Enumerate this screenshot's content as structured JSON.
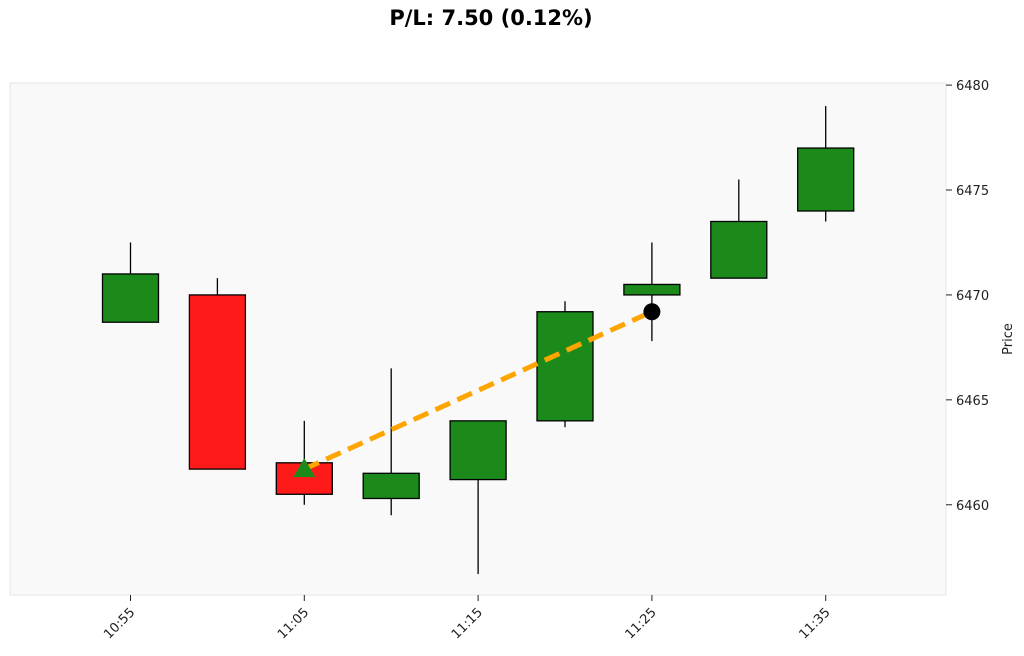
{
  "chart_data": {
    "type": "candlestick",
    "title": "P/L: 7.50 (0.12%)",
    "xlabel": "",
    "ylabel": "Price",
    "ylim": [
      6455.7,
      6480.1
    ],
    "yticks": [
      6460,
      6465,
      6470,
      6475,
      6480
    ],
    "xticks": [
      "10:55",
      "11:05",
      "11:15",
      "11:25",
      "11:35"
    ],
    "grid": false,
    "colors": {
      "up": "#1b8a1b",
      "down": "#ff1a1a",
      "trade_line": "#ffa500",
      "entry_marker": "#1b8a1b",
      "exit_marker": "#000000",
      "plot_bg": "#f9f9f9"
    },
    "candles": [
      {
        "time": "10:55",
        "open": 6468.7,
        "high": 6472.5,
        "low": 6468.7,
        "close": 6471.0
      },
      {
        "time": "11:00",
        "open": 6470.0,
        "high": 6470.8,
        "low": 6461.7,
        "close": 6461.7
      },
      {
        "time": "11:05",
        "open": 6462.0,
        "high": 6464.0,
        "low": 6460.0,
        "close": 6460.5
      },
      {
        "time": "11:10",
        "open": 6460.3,
        "high": 6466.5,
        "low": 6459.5,
        "close": 6461.5
      },
      {
        "time": "11:15",
        "open": 6461.2,
        "high": 6464.0,
        "low": 6456.7,
        "close": 6464.0
      },
      {
        "time": "11:20",
        "open": 6464.0,
        "high": 6469.7,
        "low": 6463.7,
        "close": 6469.2
      },
      {
        "time": "11:25",
        "open": 6470.0,
        "high": 6472.5,
        "low": 6467.8,
        "close": 6470.5
      },
      {
        "time": "11:30",
        "open": 6470.8,
        "high": 6475.5,
        "low": 6470.8,
        "close": 6473.5
      },
      {
        "time": "11:35",
        "open": 6474.0,
        "high": 6479.0,
        "low": 6473.5,
        "close": 6477.0
      }
    ],
    "trade": {
      "entry": {
        "time": "11:05",
        "price": 6461.7
      },
      "exit": {
        "time": "11:25",
        "price": 6469.2
      }
    }
  }
}
